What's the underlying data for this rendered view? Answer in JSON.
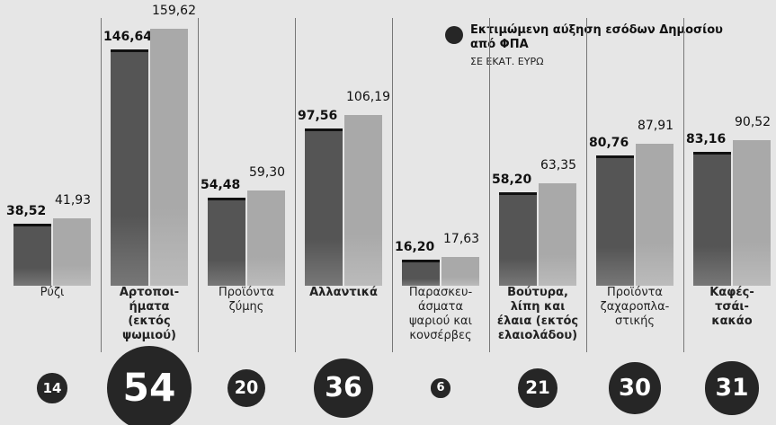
{
  "chart_data": {
    "type": "bar",
    "subtitle": "ΣΕ ΕΚΑΤ. ΕΥΡΩ",
    "categories": [
      "Ρύζι",
      "Αρτοποι-\nήματα\n(εκτός ψωμιού)",
      "Προϊόντα\nζύμης",
      "Αλλαντικά",
      "Παρασκευ-\nάσματα\nψαριού και\nκονσέρβες",
      "Βούτυρα,\nλίπη και\nέλαια (εκτός\nελαιολάδου)",
      "Προϊόντα\nζαχαροπλα-\nστικής",
      "Καφές-\nτσάι-\nκακάο"
    ],
    "category_bold": [
      false,
      true,
      false,
      true,
      false,
      true,
      false,
      true
    ],
    "series": [
      {
        "color": "#555555",
        "values": [
          38.52,
          146.64,
          54.48,
          97.56,
          16.2,
          58.2,
          80.76,
          83.16
        ],
        "value_labels": [
          "38,52",
          "146,64",
          "54,48",
          "97,56",
          "16,20",
          "58,20",
          "80,76",
          "83,16"
        ]
      },
      {
        "color": "#a9a9a9",
        "values": [
          41.93,
          159.62,
          59.3,
          106.19,
          17.63,
          63.35,
          87.91,
          90.52
        ],
        "value_labels": [
          "41,93",
          "159,62",
          "59,30",
          "106,19",
          "17,63",
          "63,35",
          "87,91",
          "90,52"
        ]
      },
      {
        "type": "bubble",
        "name": "Εκτιμώμενη αύξηση εσόδων Δημοσίου\nαπό ΦΠΑ",
        "color": "#262626",
        "values": [
          14,
          54,
          20,
          36,
          6,
          21,
          30,
          31
        ]
      }
    ]
  }
}
